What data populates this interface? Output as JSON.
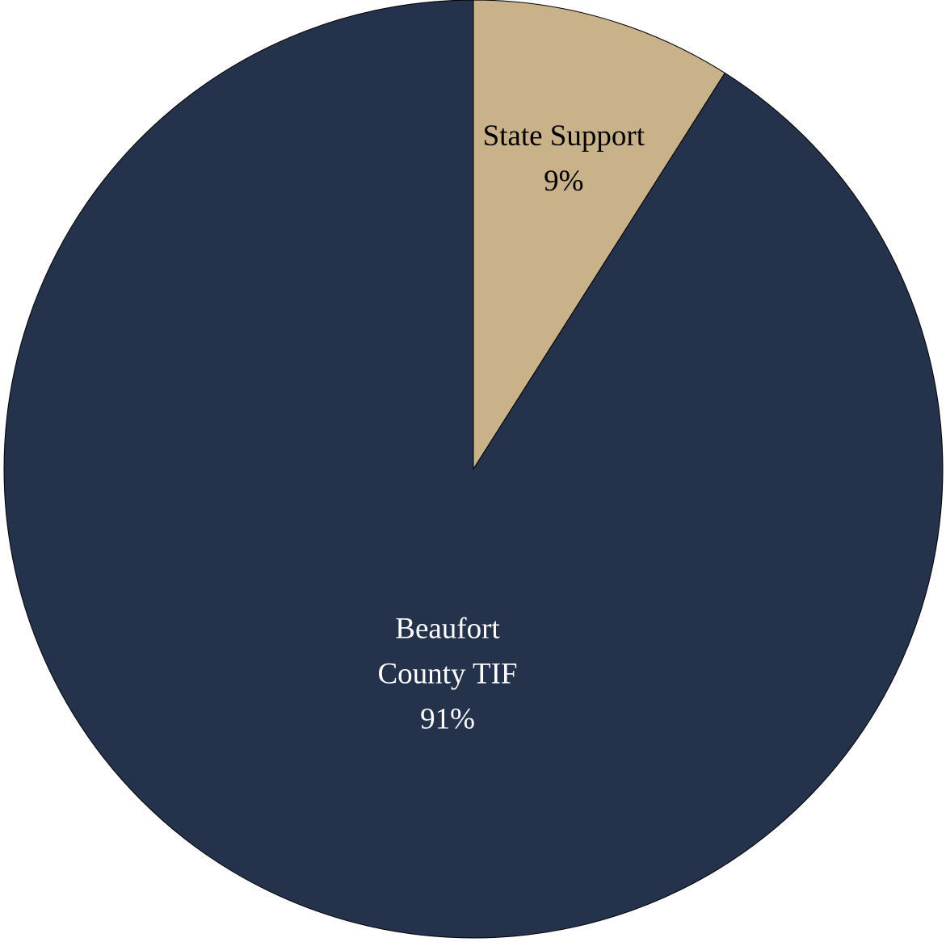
{
  "chart_data": {
    "type": "pie",
    "slices": [
      {
        "name": "State Support",
        "label_lines": [
          "State Support",
          "9%"
        ],
        "value": 9,
        "color": "#C9B28A",
        "label_color": "#000000"
      },
      {
        "name": "Beaufort County TIF",
        "label_lines": [
          "Beaufort",
          "County TIF",
          "91%"
        ],
        "value": 91,
        "color": "#24324B",
        "label_color": "#FFFFFF"
      }
    ],
    "start_angle": "12 o'clock",
    "direction": "clockwise",
    "legend": "none",
    "labels": "inside slices"
  }
}
